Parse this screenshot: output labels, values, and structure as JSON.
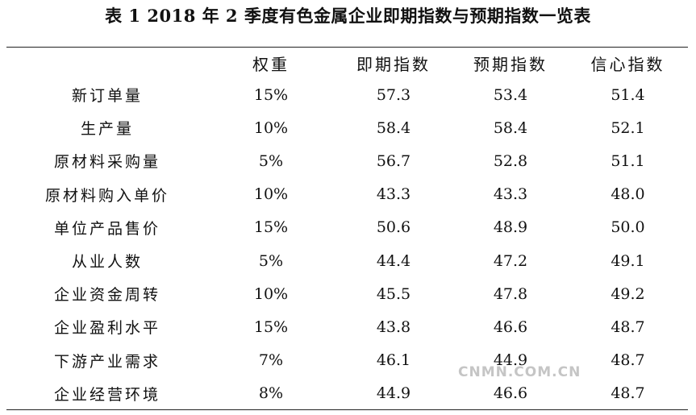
{
  "title": "表 1   2018 年 2 季度有色金属企业即期指数与预期指数一览表",
  "columns": [
    "",
    "权重",
    "即期指数",
    "预期指数",
    "信心指数"
  ],
  "rows": [
    {
      "name": "新订单量",
      "weight": "15%",
      "current": "57.3",
      "expected": "53.4",
      "confidence": "51.4"
    },
    {
      "name": "生产量",
      "weight": "10%",
      "current": "58.4",
      "expected": "58.4",
      "confidence": "52.1"
    },
    {
      "name": "原材料采购量",
      "weight": "5%",
      "current": "56.7",
      "expected": "52.8",
      "confidence": "51.1"
    },
    {
      "name": "原材料购入单价",
      "weight": "10%",
      "current": "43.3",
      "expected": "43.3",
      "confidence": "48.0"
    },
    {
      "name": "单位产品售价",
      "weight": "15%",
      "current": "50.6",
      "expected": "48.9",
      "confidence": "50.0"
    },
    {
      "name": "从业人数",
      "weight": "5%",
      "current": "44.4",
      "expected": "47.2",
      "confidence": "49.1"
    },
    {
      "name": "企业资金周转",
      "weight": "10%",
      "current": "45.5",
      "expected": "47.8",
      "confidence": "49.2"
    },
    {
      "name": "企业盈利水平",
      "weight": "15%",
      "current": "43.8",
      "expected": "46.6",
      "confidence": "48.7"
    },
    {
      "name": "下游产业需求",
      "weight": "7%",
      "current": "46.1",
      "expected": "44.9",
      "confidence": "48.7"
    },
    {
      "name": "企业经营环境",
      "weight": "8%",
      "current": "44.9",
      "expected": "46.6",
      "confidence": "48.7"
    }
  ],
  "watermark": "CNMN.COM.CN"
}
